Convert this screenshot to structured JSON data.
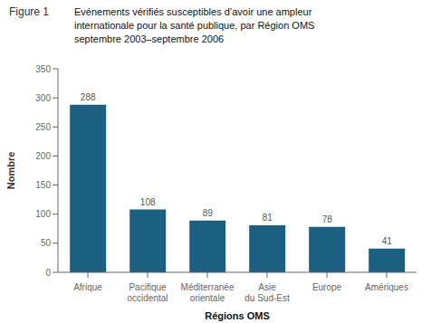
{
  "chart_data": {
    "type": "bar",
    "title": "Evénements vérifiés susceptibles d’avoir une ampleur\ninternationale pour la santé publique, par Région OMS\nseptembre 2003–septembre 2006",
    "annotations": [
      "Figure 1"
    ],
    "categories": [
      "Afrique",
      "Pacifique\noccidental",
      "Méditerranée\norientale",
      "Asie\ndu Sud-Est",
      "Europe",
      "Amériques"
    ],
    "values": [
      288,
      108,
      89,
      81,
      78,
      41
    ],
    "color": "#1b6080",
    "xlabel": "Régions OMS",
    "ylabel": "Nombre",
    "ylim": [
      0,
      350
    ],
    "yticks": [
      0,
      50,
      100,
      150,
      200,
      250,
      300,
      350
    ],
    "grid": false,
    "data_labels": true
  }
}
